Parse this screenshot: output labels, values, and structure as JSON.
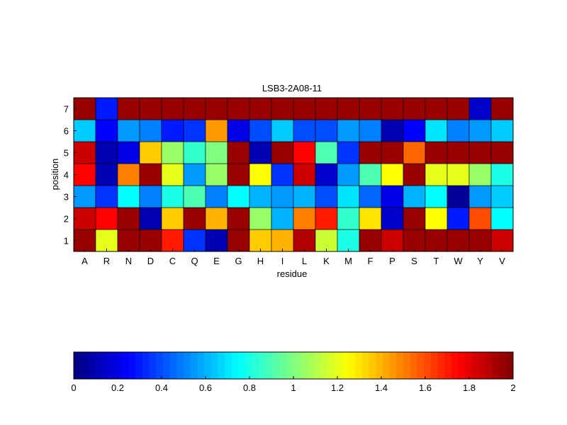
{
  "chart_data": {
    "type": "heatmap",
    "title": "LSB3-2A08-11",
    "xlabel": "residue",
    "ylabel": "position",
    "x_categories": [
      "A",
      "R",
      "N",
      "D",
      "C",
      "Q",
      "E",
      "G",
      "H",
      "I",
      "L",
      "K",
      "M",
      "F",
      "P",
      "S",
      "T",
      "W",
      "Y",
      "V"
    ],
    "y_categories": [
      "1",
      "2",
      "3",
      "4",
      "5",
      "6",
      "7"
    ],
    "values": [
      [
        1.95,
        1.2,
        1.95,
        1.95,
        1.7,
        0.35,
        0.1,
        1.95,
        1.35,
        1.4,
        1.9,
        1.15,
        0.8,
        1.95,
        1.85,
        1.95,
        1.95,
        1.95,
        1.95,
        1.85
      ],
      [
        1.85,
        1.75,
        1.95,
        0.1,
        1.35,
        1.95,
        1.4,
        1.95,
        1.05,
        0.6,
        1.5,
        1.7,
        0.85,
        1.3,
        0.15,
        1.95,
        1.25,
        0.3,
        1.6,
        0.75
      ],
      [
        0.55,
        0.35,
        0.75,
        0.5,
        0.8,
        0.9,
        0.5,
        0.75,
        0.6,
        0.55,
        0.6,
        0.4,
        0.7,
        0.45,
        0.2,
        0.6,
        0.75,
        0.05,
        0.55,
        0.65
      ],
      [
        1.75,
        0.1,
        1.5,
        1.95,
        1.2,
        0.55,
        1.05,
        1.95,
        1.25,
        0.35,
        1.85,
        0.15,
        0.55,
        0.9,
        1.25,
        1.95,
        1.2,
        1.2,
        1.05,
        0.8
      ],
      [
        1.85,
        0.1,
        0.2,
        1.35,
        1.05,
        0.85,
        1.0,
        1.95,
        0.1,
        1.95,
        1.75,
        0.9,
        0.35,
        1.95,
        1.95,
        1.55,
        1.95,
        1.95,
        1.95,
        1.95
      ],
      [
        0.65,
        0.25,
        0.55,
        0.5,
        0.3,
        0.35,
        1.45,
        0.2,
        0.4,
        0.65,
        0.4,
        0.4,
        0.55,
        0.5,
        0.1,
        0.25,
        0.7,
        0.5,
        0.55,
        0.65
      ],
      [
        1.95,
        0.3,
        1.95,
        1.95,
        1.95,
        1.95,
        1.95,
        1.95,
        1.95,
        1.95,
        1.95,
        1.95,
        1.95,
        1.95,
        1.95,
        1.95,
        1.95,
        1.95,
        0.15,
        1.95
      ]
    ],
    "colormap": "jet",
    "clim": [
      0,
      2
    ],
    "colorbar": {
      "orientation": "horizontal",
      "placement": "bottom",
      "tick_labels": [
        "0",
        "0.2",
        "0.4",
        "0.6",
        "0.8",
        "1",
        "1.2",
        "1.4",
        "1.6",
        "1.8",
        "2"
      ]
    }
  }
}
